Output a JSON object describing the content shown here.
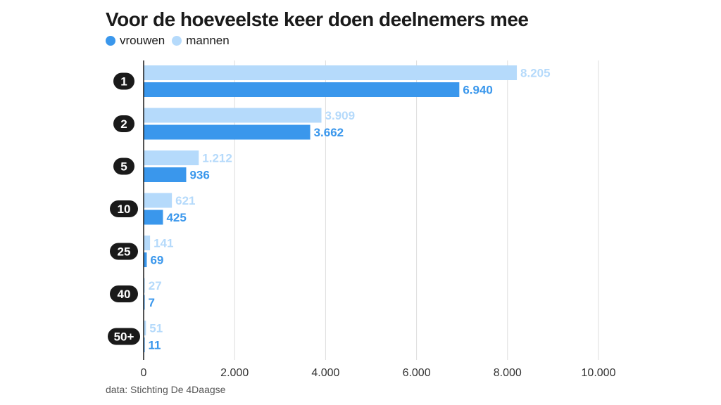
{
  "title": "Voor de hoeveelste keer doen deelnemers mee",
  "legend": [
    {
      "label": "vrouwen",
      "color": "#3a97ec"
    },
    {
      "label": "mannen",
      "color": "#b5dafb"
    }
  ],
  "source": "data: Stichting De 4Daagse",
  "chart_data": {
    "type": "bar",
    "orientation": "horizontal",
    "title": "Voor de hoeveelste keer doen deelnemers mee",
    "categories": [
      "1",
      "2",
      "5",
      "10",
      "25",
      "40",
      "50+"
    ],
    "series": [
      {
        "name": "mannen",
        "color": "#b5dafb",
        "label_color": "#b5dafb",
        "values": [
          8205,
          3909,
          1212,
          621,
          141,
          27,
          51
        ],
        "labels": [
          "8.205",
          "3.909",
          "1.212",
          "621",
          "141",
          "27",
          "51"
        ]
      },
      {
        "name": "vrouwen",
        "color": "#3a97ec",
        "label_color": "#3a97ec",
        "values": [
          6940,
          3662,
          936,
          425,
          69,
          7,
          11
        ],
        "labels": [
          "6.940",
          "3.662",
          "936",
          "425",
          "69",
          "7",
          "11"
        ]
      }
    ],
    "xlim": [
      0,
      10000
    ],
    "xticks": [
      0,
      2000,
      4000,
      6000,
      8000,
      10000
    ],
    "xtick_labels": [
      "0",
      "2.000",
      "4.000",
      "6.000",
      "8.000",
      "10.000"
    ],
    "grid": true,
    "legend_position": "top-left"
  }
}
